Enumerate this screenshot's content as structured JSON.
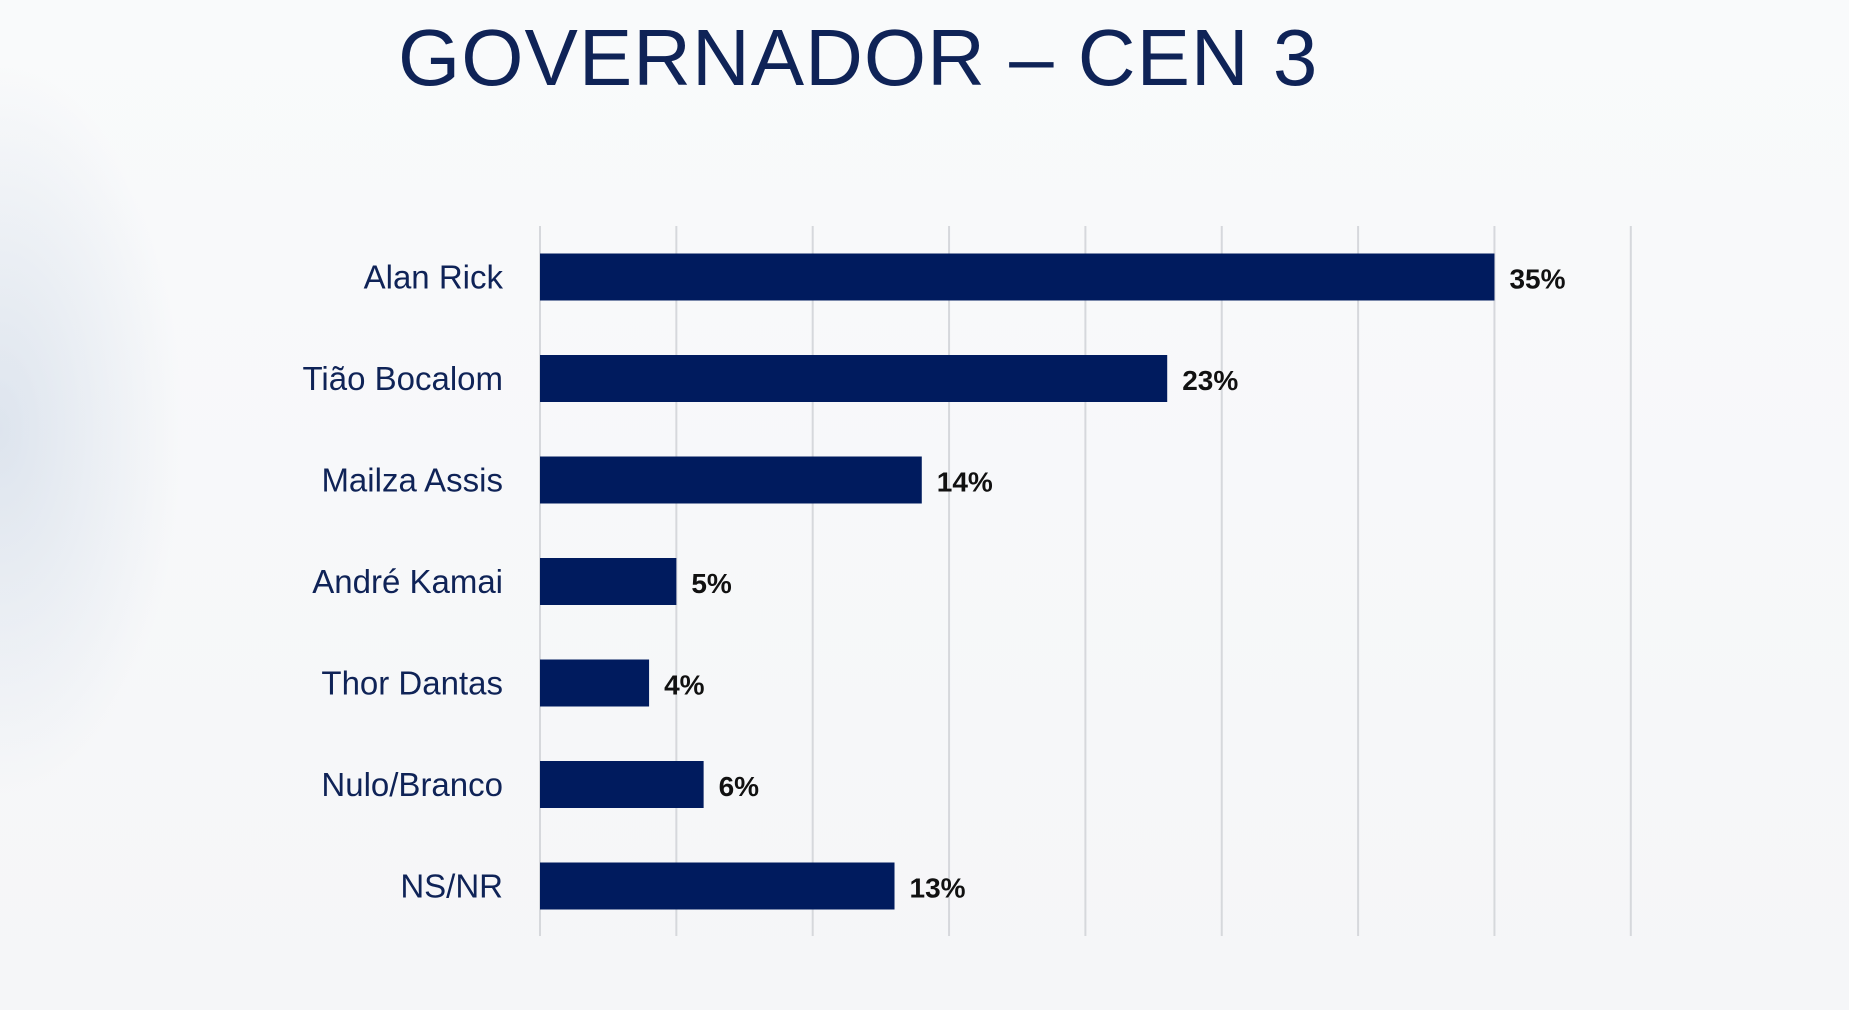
{
  "slide": {
    "title": "GOVERNADOR – CEN 3"
  },
  "colors": {
    "bar": "#001b5e",
    "title": "#0f2357",
    "category_text": "#0f2357",
    "value_text": "#111111",
    "grid": "#d6d8dc"
  },
  "chart_data": {
    "type": "bar",
    "orientation": "horizontal",
    "title": "GOVERNADOR – CEN 3",
    "xlabel": "",
    "ylabel": "",
    "categories": [
      "Alan Rick",
      "Tião Bocalom",
      "Mailza Assis",
      "André Kamai",
      "Thor Dantas",
      "Nulo/Branco",
      "NS/NR"
    ],
    "values": [
      35,
      23,
      14,
      5,
      4,
      6,
      13
    ],
    "value_labels": [
      "35%",
      "23%",
      "14%",
      "5%",
      "4%",
      "6%",
      "13%"
    ],
    "xlim": [
      0,
      40
    ],
    "grid_step": 5,
    "grid": true,
    "legend": "none"
  }
}
